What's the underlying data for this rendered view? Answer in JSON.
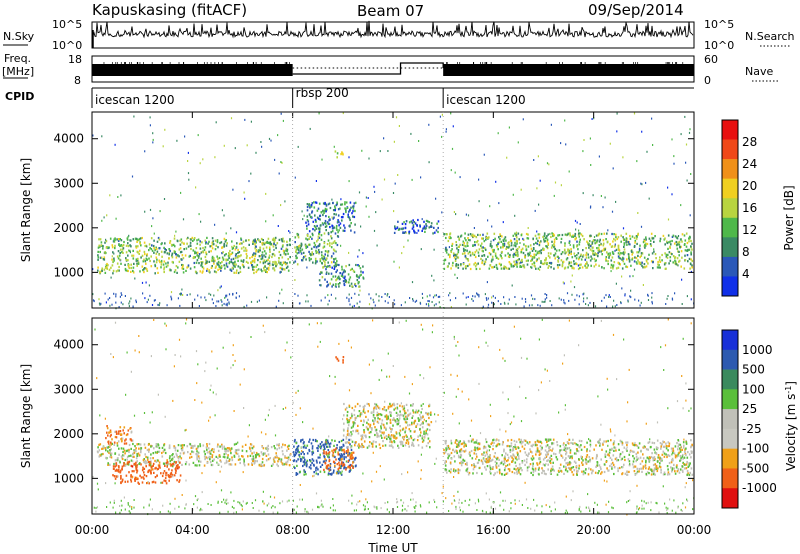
{
  "header": {
    "station": "Kapuskasing (fitACF)",
    "beam": "Beam 07",
    "date": "09/Sep/2014"
  },
  "side_labels": {
    "nsky": "N.Sky",
    "freq": "Freq.",
    "mhz": "[MHz]",
    "cpid": "CPID",
    "nsearch": "N.Search",
    "nave": "Nave"
  },
  "noise_axis": {
    "top": "10^5",
    "bottom": "10^0"
  },
  "freq_axis": {
    "left_top": "18",
    "left_bottom": "8",
    "right_top": "60",
    "right_bottom": "0"
  },
  "cpid_segments": [
    {
      "label": "icescan 1200",
      "start_h": 0,
      "end_h": 8
    },
    {
      "label": "rbsp 200",
      "start_h": 8,
      "end_h": 14
    },
    {
      "label": "icescan 1200",
      "start_h": 14,
      "end_h": 24
    }
  ],
  "colors": {
    "power_scale": [
      "#1030e8",
      "#2a58b8",
      "#3a8a64",
      "#4fb84a",
      "#b8d440",
      "#f0d020",
      "#f09018",
      "#f04818",
      "#e81010"
    ],
    "velocity_scale": [
      "#1830d8",
      "#2d5ab0",
      "#3a8a5e",
      "#5abf3a",
      "#c0c0b8",
      "#c8c8c0",
      "#f0a018",
      "#f06018",
      "#e01010"
    ]
  },
  "chart_data": [
    {
      "type": "heatmap",
      "panel": "power",
      "xlabel": "",
      "ylabel": "Slant Range [km]",
      "xlim": [
        0,
        24
      ],
      "ylim": [
        200,
        4600
      ],
      "y_ticks": [
        1000,
        2000,
        3000,
        4000
      ],
      "colorbar": {
        "label": "Power [dB]",
        "ticks": [
          "4",
          "8",
          "12",
          "16",
          "20",
          "24",
          "28"
        ],
        "range": [
          0,
          30
        ]
      },
      "echo_regions": [
        {
          "x_start": 0.2,
          "x_end": 7.9,
          "range_start": 1000,
          "range_end": 1800,
          "level": 12
        },
        {
          "x_start": 8.0,
          "x_end": 9.8,
          "range_start": 1200,
          "range_end": 1900,
          "level": 10
        },
        {
          "x_start": 8.5,
          "x_end": 10.5,
          "range_start": 1900,
          "range_end": 2600,
          "level": 6
        },
        {
          "x_start": 9.0,
          "x_end": 10.8,
          "range_start": 700,
          "range_end": 1200,
          "level": 8
        },
        {
          "x_start": 9.6,
          "x_end": 10.0,
          "range_start": 3600,
          "range_end": 3750,
          "level": 14
        },
        {
          "x_start": 12.0,
          "x_end": 13.9,
          "range_start": 1900,
          "range_end": 2200,
          "level": 4
        },
        {
          "x_start": 14.0,
          "x_end": 23.9,
          "range_start": 1100,
          "range_end": 1900,
          "level": 12
        }
      ]
    },
    {
      "type": "heatmap",
      "panel": "velocity",
      "xlabel": "Time UT",
      "ylabel": "Slant Range [km]",
      "xlim": [
        0,
        24
      ],
      "ylim": [
        200,
        4600
      ],
      "x_ticks": [
        "00:00",
        "04:00",
        "08:00",
        "12:00",
        "16:00",
        "20:00",
        "00:00"
      ],
      "y_ticks": [
        1000,
        2000,
        3000,
        4000
      ],
      "colorbar": {
        "label": "Velocity [m s^-1]",
        "ticks": [
          "1000",
          "500",
          "100",
          "25",
          "-25",
          "-100",
          "-500",
          "-1000"
        ]
      },
      "echo_regions": [
        {
          "x_start": 0.2,
          "x_end": 7.9,
          "range_start": 1300,
          "range_end": 1800,
          "velocity": 0
        },
        {
          "x_start": 0.8,
          "x_end": 3.5,
          "range_start": 900,
          "range_end": 1400,
          "velocity": -300
        },
        {
          "x_start": 0.5,
          "x_end": 1.6,
          "range_start": 1800,
          "range_end": 2200,
          "velocity": -100
        },
        {
          "x_start": 8.0,
          "x_end": 10.5,
          "range_start": 1100,
          "range_end": 1900,
          "velocity": 200
        },
        {
          "x_start": 9.2,
          "x_end": 10.4,
          "range_start": 1200,
          "range_end": 1700,
          "velocity": -200
        },
        {
          "x_start": 10.0,
          "x_end": 13.5,
          "range_start": 1700,
          "range_end": 2700,
          "velocity": 0
        },
        {
          "x_start": 9.6,
          "x_end": 10.0,
          "range_start": 3600,
          "range_end": 3750,
          "velocity": -300
        },
        {
          "x_start": 14.0,
          "x_end": 23.9,
          "range_start": 1100,
          "range_end": 1900,
          "velocity": 0
        }
      ]
    }
  ]
}
